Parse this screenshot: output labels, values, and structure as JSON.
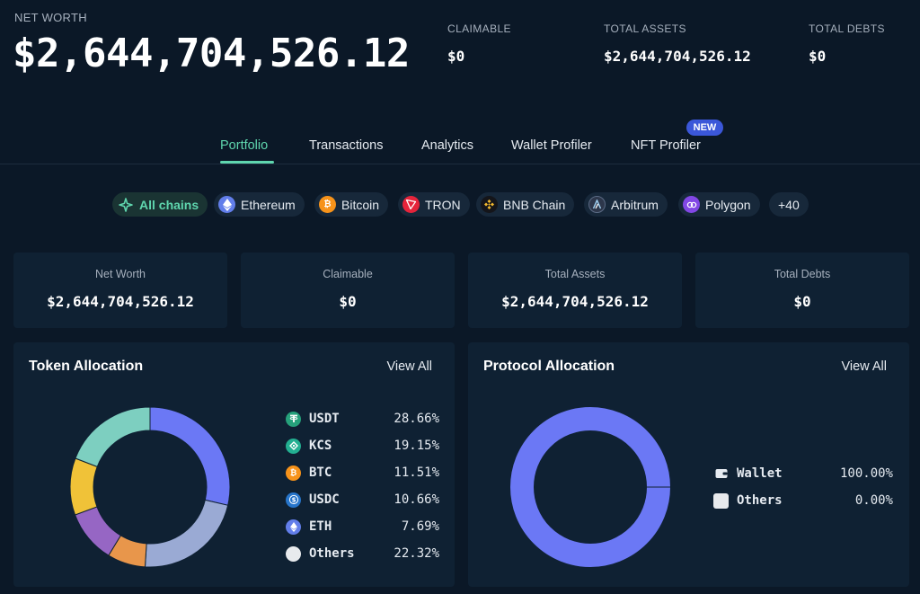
{
  "header": {
    "net_worth_label": "NET WORTH",
    "net_worth_value": "$2,644,704,526.12",
    "stats": [
      {
        "label": "CLAIMABLE",
        "value": "$0"
      },
      {
        "label": "TOTAL ASSETS",
        "value": "$2,644,704,526.12"
      },
      {
        "label": "TOTAL DEBTS",
        "value": "$0"
      }
    ]
  },
  "tabs": {
    "items": [
      {
        "label": "Portfolio",
        "active": true
      },
      {
        "label": "Transactions",
        "active": false
      },
      {
        "label": "Analytics",
        "active": false
      },
      {
        "label": "Wallet Profiler",
        "active": false
      },
      {
        "label": "NFT Profiler",
        "active": false
      }
    ],
    "new_badge": "NEW"
  },
  "chains": {
    "items": [
      {
        "label": "All chains",
        "icon": "all-chains-icon",
        "color": "#5fd6ae",
        "active": true
      },
      {
        "label": "Ethereum",
        "icon": "ethereum-icon",
        "color": "#627eea",
        "active": false
      },
      {
        "label": "Bitcoin",
        "icon": "bitcoin-icon",
        "color": "#f7931a",
        "active": false
      },
      {
        "label": "TRON",
        "icon": "tron-icon",
        "color": "#e5243b",
        "active": false
      },
      {
        "label": "BNB Chain",
        "icon": "bnb-chain-icon",
        "color": "#f3ba2f",
        "active": false
      },
      {
        "label": "Arbitrum",
        "icon": "arbitrum-icon",
        "color": "#2d374b",
        "active": false
      },
      {
        "label": "Polygon",
        "icon": "polygon-icon",
        "color": "#8247e5",
        "active": false
      }
    ],
    "more_label": "+40"
  },
  "summary": [
    {
      "label": "Net Worth",
      "value": "$2,644,704,526.12"
    },
    {
      "label": "Claimable",
      "value": "$0"
    },
    {
      "label": "Total Assets",
      "value": "$2,644,704,526.12"
    },
    {
      "label": "Total Debts",
      "value": "$0"
    }
  ],
  "token_allocation": {
    "title": "Token Allocation",
    "view_all": "View All",
    "items": [
      {
        "name": "USDT",
        "pct": "28.66%",
        "icon": "usdt-icon",
        "icon_color": "#26a17b"
      },
      {
        "name": "KCS",
        "pct": "19.15%",
        "icon": "kcs-icon",
        "icon_color": "#23af91"
      },
      {
        "name": "BTC",
        "pct": "11.51%",
        "icon": "btc-icon",
        "icon_color": "#f7931a"
      },
      {
        "name": "USDC",
        "pct": "10.66%",
        "icon": "usdc-icon",
        "icon_color": "#2775ca"
      },
      {
        "name": "ETH",
        "pct": "7.69%",
        "icon": "eth-icon",
        "icon_color": "#627eea"
      },
      {
        "name": "Others",
        "pct": "22.32%",
        "icon": "others-icon",
        "icon_color": "#e8eaed"
      }
    ]
  },
  "protocol_allocation": {
    "title": "Protocol Allocation",
    "view_all": "View All",
    "items": [
      {
        "name": "Wallet",
        "pct": "100.00%",
        "icon": "wallet-icon"
      },
      {
        "name": "Others",
        "pct": "0.00%",
        "icon": "others-icon"
      }
    ]
  },
  "chart_data": [
    {
      "type": "pie",
      "variant": "donut",
      "title": "Token Allocation",
      "categories": [
        "USDT",
        "Others",
        "ETH",
        "USDC",
        "BTC",
        "KCS"
      ],
      "values": [
        28.66,
        22.32,
        7.69,
        10.66,
        11.51,
        19.15
      ],
      "colors": [
        "#6b78f5",
        "#9aaad4",
        "#e8964b",
        "#9666c4",
        "#f0c238",
        "#7dcfc0"
      ]
    },
    {
      "type": "pie",
      "variant": "donut",
      "title": "Protocol Allocation",
      "categories": [
        "Wallet",
        "Others"
      ],
      "values": [
        100.0,
        0.0
      ],
      "colors": [
        "#6b78f5",
        "#e8eaed"
      ]
    }
  ]
}
